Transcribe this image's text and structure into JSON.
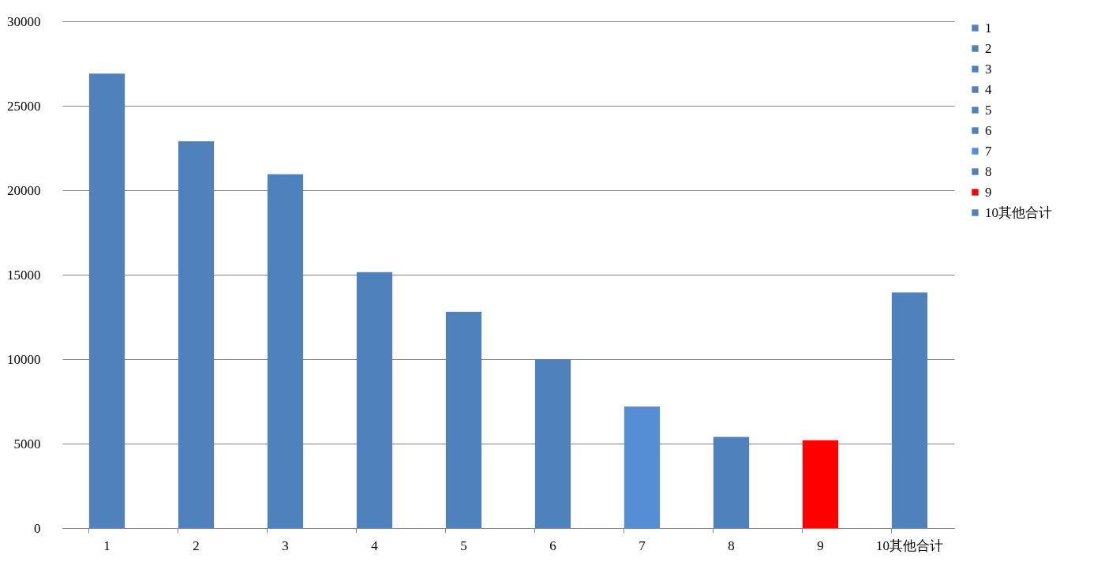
{
  "chart_data": {
    "type": "bar",
    "categories": [
      "1",
      "2",
      "3",
      "4",
      "5",
      "6",
      "7",
      "8",
      "9",
      "10其他合计"
    ],
    "series": [
      {
        "name": "1",
        "color": "#4f81bd",
        "values": [
          26900,
          null,
          null,
          null,
          null,
          null,
          null,
          null,
          null,
          null
        ]
      },
      {
        "name": "2",
        "color": "#4f81bd",
        "values": [
          null,
          22900,
          null,
          null,
          null,
          null,
          null,
          null,
          null,
          null
        ]
      },
      {
        "name": "3",
        "color": "#4f81bd",
        "values": [
          null,
          null,
          20950,
          null,
          null,
          null,
          null,
          null,
          null,
          null
        ]
      },
      {
        "name": "4",
        "color": "#4f81bd",
        "values": [
          null,
          null,
          null,
          15150,
          null,
          null,
          null,
          null,
          null,
          null
        ]
      },
      {
        "name": "5",
        "color": "#4f81bd",
        "values": [
          null,
          null,
          null,
          null,
          12800,
          null,
          null,
          null,
          null,
          null
        ]
      },
      {
        "name": "6",
        "color": "#4f81bd",
        "values": [
          null,
          null,
          null,
          null,
          null,
          10000,
          null,
          null,
          null,
          null
        ]
      },
      {
        "name": "7",
        "color": "#558ed5",
        "values": [
          null,
          null,
          null,
          null,
          null,
          null,
          7200,
          null,
          null,
          null
        ]
      },
      {
        "name": "8",
        "color": "#4f81bd",
        "values": [
          null,
          null,
          null,
          null,
          null,
          null,
          null,
          5400,
          null,
          null
        ]
      },
      {
        "name": "9",
        "color": "#ff0000",
        "values": [
          null,
          null,
          null,
          null,
          null,
          null,
          null,
          null,
          5200,
          null
        ]
      },
      {
        "name": "10其他合计",
        "color": "#4f81bd",
        "values": [
          null,
          null,
          null,
          null,
          null,
          null,
          null,
          null,
          null,
          13950
        ]
      }
    ],
    "ylim": [
      0,
      30000
    ],
    "yticks": [
      0,
      5000,
      10000,
      15000,
      20000,
      25000,
      30000
    ],
    "grid": "y",
    "legend": "right"
  }
}
